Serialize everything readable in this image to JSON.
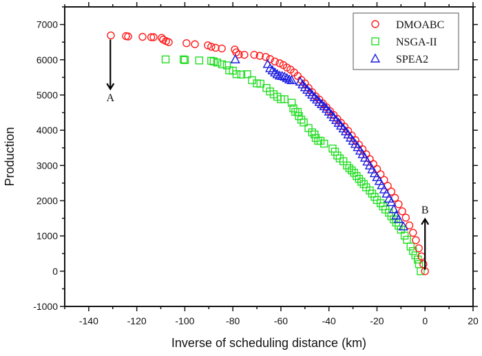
{
  "chart_data": {
    "type": "scatter",
    "title": "",
    "xlabel": "Inverse of scheduling distance (km)",
    "ylabel": "Production",
    "xlim": [
      -150,
      20
    ],
    "ylim": [
      -1000,
      7500
    ],
    "x_ticks": [
      -140,
      -120,
      -100,
      -80,
      -60,
      -40,
      -20,
      0,
      20
    ],
    "x_tick_labels": [
      "-140",
      "-120",
      "-100",
      "-80",
      "-60",
      "-40",
      "-20",
      "0",
      "20"
    ],
    "y_ticks": [
      -1000,
      0,
      1000,
      2000,
      3000,
      4000,
      5000,
      6000,
      7000
    ],
    "y_tick_labels": [
      "-1000",
      "0",
      "1000",
      "2000",
      "3000",
      "4000",
      "5000",
      "6000",
      "7000"
    ],
    "grid": false,
    "legend_position": "top-right",
    "series": [
      {
        "name": "DMOABC",
        "marker": "circle",
        "color": "#ff1a1a",
        "points": [
          [
            -130.8,
            6690
          ],
          [
            -124.5,
            6670
          ],
          [
            -123.6,
            6660
          ],
          [
            -117.6,
            6650
          ],
          [
            -114.0,
            6640
          ],
          [
            -113.0,
            6640
          ],
          [
            -109.6,
            6620
          ],
          [
            -109.0,
            6570
          ],
          [
            -107.8,
            6530
          ],
          [
            -106.7,
            6500
          ],
          [
            -99.3,
            6470
          ],
          [
            -95.8,
            6440
          ],
          [
            -90.4,
            6410
          ],
          [
            -89.0,
            6370
          ],
          [
            -87.2,
            6340
          ],
          [
            -84.6,
            6320
          ],
          [
            -79.2,
            6290
          ],
          [
            -78.6,
            6210
          ],
          [
            -77.5,
            6150
          ],
          [
            -75.2,
            6140
          ],
          [
            -71.1,
            6140
          ],
          [
            -68.8,
            6110
          ],
          [
            -66.3,
            6080
          ],
          [
            -64.5,
            6020
          ],
          [
            -62.5,
            5950
          ],
          [
            -60.5,
            5900
          ],
          [
            -59.0,
            5850
          ],
          [
            -57.5,
            5780
          ],
          [
            -56.0,
            5720
          ],
          [
            -54.5,
            5640
          ],
          [
            -53.0,
            5540
          ],
          [
            -51.5,
            5430
          ],
          [
            -50.0,
            5330
          ],
          [
            -48.5,
            5200
          ],
          [
            -47.0,
            5080
          ],
          [
            -45.5,
            4960
          ],
          [
            -44.0,
            4870
          ],
          [
            -42.5,
            4760
          ],
          [
            -41.0,
            4650
          ],
          [
            -39.5,
            4540
          ],
          [
            -38.0,
            4430
          ],
          [
            -36.5,
            4320
          ],
          [
            -35.0,
            4210
          ],
          [
            -33.5,
            4100
          ],
          [
            -32.0,
            3980
          ],
          [
            -30.5,
            3850
          ],
          [
            -29.0,
            3720
          ],
          [
            -27.5,
            3590
          ],
          [
            -26.0,
            3460
          ],
          [
            -24.5,
            3320
          ],
          [
            -23.0,
            3180
          ],
          [
            -21.5,
            3040
          ],
          [
            -20.0,
            2900
          ],
          [
            -18.5,
            2750
          ],
          [
            -17.0,
            2590
          ],
          [
            -15.5,
            2420
          ],
          [
            -14.0,
            2260
          ],
          [
            -12.5,
            2080
          ],
          [
            -11.0,
            1900
          ],
          [
            -9.5,
            1700
          ],
          [
            -8.0,
            1520
          ],
          [
            -6.5,
            1300
          ],
          [
            -5.0,
            1090
          ],
          [
            -3.8,
            880
          ],
          [
            -2.6,
            650
          ],
          [
            -1.5,
            420
          ],
          [
            -0.7,
            200
          ],
          [
            0.0,
            0
          ]
        ]
      },
      {
        "name": "NSGA-II",
        "marker": "square",
        "color": "#22dd22",
        "points": [
          [
            -108.0,
            6010
          ],
          [
            -100.5,
            6010
          ],
          [
            -100.0,
            5990
          ],
          [
            -94.0,
            5980
          ],
          [
            -89.0,
            5970
          ],
          [
            -88.0,
            5950
          ],
          [
            -86.5,
            5920
          ],
          [
            -84.5,
            5870
          ],
          [
            -82.5,
            5840
          ],
          [
            -81.5,
            5700
          ],
          [
            -80.0,
            5690
          ],
          [
            -78.5,
            5590
          ],
          [
            -76.5,
            5580
          ],
          [
            -74.0,
            5590
          ],
          [
            -72.0,
            5420
          ],
          [
            -70.0,
            5330
          ],
          [
            -68.5,
            5320
          ],
          [
            -66.0,
            5200
          ],
          [
            -64.5,
            5100
          ],
          [
            -63.0,
            5020
          ],
          [
            -61.5,
            4950
          ],
          [
            -60.0,
            4880
          ],
          [
            -58.5,
            4880
          ],
          [
            -55.5,
            4780
          ],
          [
            -54.8,
            4620
          ],
          [
            -54.0,
            4520
          ],
          [
            -53.0,
            4520
          ],
          [
            -52.5,
            4400
          ],
          [
            -51.5,
            4300
          ],
          [
            -50.5,
            4220
          ],
          [
            -48.5,
            4060
          ],
          [
            -47.0,
            3940
          ],
          [
            -46.0,
            3880
          ],
          [
            -45.5,
            3780
          ],
          [
            -44.5,
            3700
          ],
          [
            -43.5,
            3700
          ],
          [
            -42.0,
            3620
          ],
          [
            -38.5,
            3480
          ],
          [
            -37.5,
            3390
          ],
          [
            -36.5,
            3280
          ],
          [
            -35.5,
            3200
          ],
          [
            -34.0,
            3120
          ],
          [
            -32.5,
            3000
          ],
          [
            -31.5,
            2920
          ],
          [
            -30.5,
            2860
          ],
          [
            -29.5,
            2790
          ],
          [
            -28.5,
            2700
          ],
          [
            -27.5,
            2620
          ],
          [
            -26.5,
            2540
          ],
          [
            -25.5,
            2470
          ],
          [
            -24.5,
            2380
          ],
          [
            -23.0,
            2290
          ],
          [
            -22.0,
            2200
          ],
          [
            -21.0,
            2110
          ],
          [
            -20.0,
            2020
          ],
          [
            -18.5,
            1930
          ],
          [
            -17.5,
            1840
          ],
          [
            -16.5,
            1750
          ],
          [
            -15.0,
            1660
          ],
          [
            -14.0,
            1560
          ],
          [
            -13.0,
            1470
          ],
          [
            -12.0,
            1380
          ],
          [
            -11.0,
            1290
          ],
          [
            -10.0,
            1180
          ],
          [
            -8.5,
            1010
          ],
          [
            -7.5,
            890
          ],
          [
            -6.0,
            700
          ],
          [
            -5.0,
            570
          ],
          [
            -4.0,
            450
          ],
          [
            -3.0,
            330
          ],
          [
            -2.5,
            200
          ],
          [
            -1.8,
            0
          ]
        ]
      },
      {
        "name": "SPEA2",
        "marker": "triangle",
        "color": "#1a1adf",
        "points": [
          [
            -79.0,
            6010
          ],
          [
            -65.5,
            5880
          ],
          [
            -64.5,
            5760
          ],
          [
            -63.5,
            5700
          ],
          [
            -62.5,
            5640
          ],
          [
            -61.5,
            5590
          ],
          [
            -60.5,
            5550
          ],
          [
            -59.5,
            5540
          ],
          [
            -58.5,
            5520
          ],
          [
            -57.5,
            5480
          ],
          [
            -56.5,
            5440
          ],
          [
            -55.5,
            5420
          ],
          [
            -52.0,
            5380
          ],
          [
            -51.0,
            5300
          ],
          [
            -50.0,
            5220
          ],
          [
            -49.0,
            5150
          ],
          [
            -48.0,
            5080
          ],
          [
            -47.0,
            5010
          ],
          [
            -46.0,
            4940
          ],
          [
            -45.0,
            4870
          ],
          [
            -44.0,
            4800
          ],
          [
            -43.0,
            4740
          ],
          [
            -42.0,
            4680
          ],
          [
            -41.0,
            4610
          ],
          [
            -40.0,
            4530
          ],
          [
            -39.0,
            4450
          ],
          [
            -38.0,
            4370
          ],
          [
            -37.0,
            4290
          ],
          [
            -36.0,
            4210
          ],
          [
            -35.0,
            4130
          ],
          [
            -34.0,
            4050
          ],
          [
            -33.0,
            3970
          ],
          [
            -32.0,
            3880
          ],
          [
            -31.0,
            3790
          ],
          [
            -30.0,
            3700
          ],
          [
            -29.0,
            3610
          ],
          [
            -28.0,
            3520
          ],
          [
            -27.0,
            3420
          ],
          [
            -26.0,
            3320
          ],
          [
            -25.0,
            3220
          ],
          [
            -24.0,
            3110
          ],
          [
            -23.0,
            3000
          ],
          [
            -22.0,
            2890
          ],
          [
            -21.0,
            2780
          ],
          [
            -20.0,
            2670
          ],
          [
            -19.0,
            2560
          ],
          [
            -18.0,
            2440
          ],
          [
            -17.0,
            2320
          ],
          [
            -16.0,
            2200
          ],
          [
            -15.0,
            2060
          ],
          [
            -14.0,
            1960
          ],
          [
            -13.0,
            1760
          ],
          [
            -12.0,
            1580
          ],
          [
            -11.0,
            1480
          ],
          [
            -9.0,
            1270
          ]
        ]
      }
    ],
    "annotations": [
      {
        "text": "A",
        "arrow": "down",
        "x": -131,
        "y_from": 6690,
        "y_to": 5170
      },
      {
        "text": "B",
        "arrow": "up",
        "x": 0,
        "y_from": 0,
        "y_to": 1480
      }
    ]
  }
}
